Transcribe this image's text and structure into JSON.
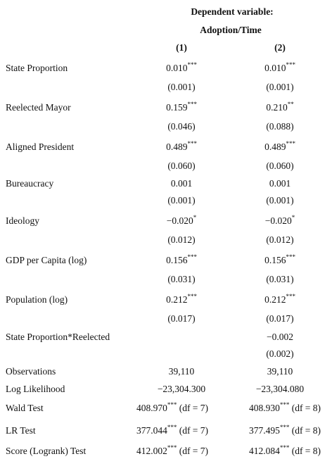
{
  "header": {
    "dependent_label": "Dependent variable:",
    "dependent_name": "Adoption/Time",
    "columns": [
      "(1)",
      "(2)"
    ]
  },
  "rows": [
    {
      "label": "State Proportion",
      "coef": [
        {
          "value": "0.010",
          "stars": "***"
        },
        {
          "value": "0.010",
          "stars": "***"
        }
      ],
      "se": [
        "(0.001)",
        "(0.001)"
      ]
    },
    {
      "label": "Reelected Mayor",
      "coef": [
        {
          "value": "0.159",
          "stars": "***"
        },
        {
          "value": "0.210",
          "stars": "**"
        }
      ],
      "se": [
        "(0.046)",
        "(0.088)"
      ]
    },
    {
      "label": "Aligned President",
      "coef": [
        {
          "value": "0.489",
          "stars": "***"
        },
        {
          "value": "0.489",
          "stars": "***"
        }
      ],
      "se": [
        "(0.060)",
        "(0.060)"
      ]
    },
    {
      "label": "Bureaucracy",
      "coef": [
        {
          "value": "0.001"
        },
        {
          "value": "0.001"
        }
      ],
      "se": [
        "(0.001)",
        "(0.001)"
      ]
    },
    {
      "label": "Ideology",
      "coef": [
        {
          "value": "−0.020",
          "stars": "*"
        },
        {
          "value": "−0.020",
          "stars": "*"
        }
      ],
      "se": [
        "(0.012)",
        "(0.012)"
      ]
    },
    {
      "label": "GDP per Capita (log)",
      "coef": [
        {
          "value": "0.156",
          "stars": "***"
        },
        {
          "value": "0.156",
          "stars": "***"
        }
      ],
      "se": [
        "(0.031)",
        "(0.031)"
      ]
    },
    {
      "label": "Population (log)",
      "coef": [
        {
          "value": "0.212",
          "stars": "***"
        },
        {
          "value": "0.212",
          "stars": "***"
        }
      ],
      "se": [
        "(0.017)",
        "(0.017)"
      ]
    },
    {
      "label": "State Proportion*Reelected",
      "coef": [
        null,
        {
          "value": "−0.002"
        }
      ],
      "se": [
        null,
        "(0.002)"
      ]
    }
  ],
  "stats": [
    {
      "label": "Observations",
      "cells": [
        {
          "value": "39,110"
        },
        {
          "value": "39,110"
        }
      ]
    },
    {
      "label": "Log Likelihood",
      "cells": [
        {
          "value": "−23,304.300"
        },
        {
          "value": "−23,304.080"
        }
      ]
    },
    {
      "label": "Wald Test",
      "cells": [
        {
          "value": "408.970",
          "stars": "***",
          "suffix": "(df = 7)"
        },
        {
          "value": "408.930",
          "stars": "***",
          "suffix": "(df = 8)"
        }
      ]
    },
    {
      "label": "LR Test",
      "cells": [
        {
          "value": "377.044",
          "stars": "***",
          "suffix": "(df = 7)"
        },
        {
          "value": "377.495",
          "stars": "***",
          "suffix": "(df = 8)"
        }
      ]
    },
    {
      "label": "Score (Logrank) Test",
      "cells": [
        {
          "value": "412.002",
          "stars": "***",
          "suffix": "(df = 7)"
        },
        {
          "value": "412.084",
          "stars": "***",
          "suffix": "(df = 8)"
        }
      ]
    }
  ]
}
